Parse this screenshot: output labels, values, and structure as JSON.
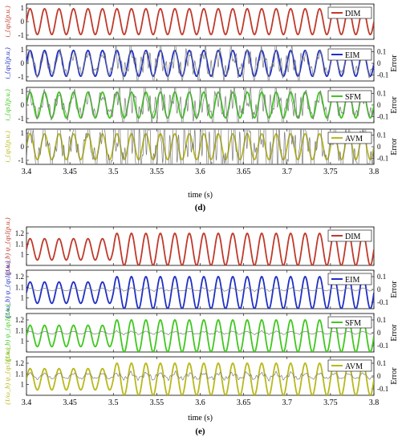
{
  "chart_data": [
    {
      "type": "line",
      "panel_label": "(d)",
      "xlabel": "time (s)",
      "xlim": [
        3.4,
        3.8
      ],
      "x_ticks": [
        "3.4",
        "3.45",
        "3.5",
        "3.55",
        "3.6",
        "3.65",
        "3.7",
        "3.75",
        "3.8"
      ],
      "subplots": [
        {
          "ylabel": "i_{qs}(p.u.)",
          "ylim": [
            -1.3,
            1.3
          ],
          "y_ticks": [
            "-1",
            "0",
            "1"
          ],
          "right_ticks": [],
          "right_label": "",
          "series": [
            {
              "name": "DIM",
              "color": "#c0392b",
              "signal": {
                "offset": 0,
                "amplitude": 0.95,
                "frequency_hz": 60,
                "noise": 0
              }
            }
          ]
        },
        {
          "ylabel": "i_{qs}(p.u.)",
          "ylim": [
            -1.3,
            1.3
          ],
          "y_ticks": [
            "-1",
            "0",
            "1"
          ],
          "right_ticks": [
            "0.1",
            "0",
            "-0.1"
          ],
          "right_label": "Error",
          "series": [
            {
              "name": "EIM",
              "color": "#1f2fc4",
              "signal": {
                "offset": 0,
                "amplitude": 0.95,
                "frequency_hz": 60,
                "noise": 0
              }
            },
            {
              "name": "Error",
              "color": "#7a7a7a",
              "signal": {
                "offset": 0,
                "amplitude": 0.08,
                "frequency_hz": 60,
                "noise": 0.35
              }
            }
          ]
        },
        {
          "ylabel": "i_{qs}(p.u.)",
          "ylim": [
            -1.3,
            1.3
          ],
          "y_ticks": [
            "-1",
            "0",
            "1"
          ],
          "right_ticks": [
            "0.1",
            "0",
            "-0.1"
          ],
          "right_label": "Error",
          "series": [
            {
              "name": "SFM",
              "color": "#3fc81e",
              "signal": {
                "offset": 0,
                "amplitude": 0.95,
                "frequency_hz": 60,
                "noise": 0
              }
            },
            {
              "name": "Error",
              "color": "#7a7a7a",
              "signal": {
                "offset": 0,
                "amplitude": 0.08,
                "frequency_hz": 60,
                "noise": 0.45
              }
            }
          ]
        },
        {
          "ylabel": "i_{qs}(p.u.)",
          "ylim": [
            -1.3,
            1.3
          ],
          "y_ticks": [
            "-1",
            "0",
            "1"
          ],
          "right_ticks": [
            "0.1",
            "0",
            "-0.1"
          ],
          "right_label": "Error",
          "series": [
            {
              "name": "AVM",
              "color": "#b8b81a",
              "signal": {
                "offset": 0,
                "amplitude": 0.95,
                "frequency_hz": 60,
                "noise": 0
              }
            },
            {
              "name": "Error",
              "color": "#7a7a7a",
              "signal": {
                "offset": 0,
                "amplitude": 0.15,
                "frequency_hz": 60,
                "noise": 0.9
              }
            }
          ]
        }
      ]
    },
    {
      "type": "line",
      "panel_label": "(e)",
      "xlabel": "time (s)",
      "xlim": [
        3.4,
        3.8
      ],
      "x_ticks": [
        "3.4",
        "3.45",
        "3.5",
        "3.55",
        "3.6",
        "3.65",
        "3.7",
        "3.75",
        "3.8"
      ],
      "subplots": [
        {
          "ylabel": "(1/ω_b) ψ_{qs}(p.u.)",
          "ylim": [
            0.9,
            1.26
          ],
          "y_ticks": [
            "1",
            "1.1",
            "1.2"
          ],
          "right_ticks": [],
          "right_label": "",
          "series": [
            {
              "name": "DIM",
              "color": "#c0392b",
              "signal": {
                "offset": 1.05,
                "amplitude": 0.1,
                "amplitude_after_3_5": 0.15,
                "frequency_hz": 60,
                "noise": 0
              }
            }
          ]
        },
        {
          "ylabel": "(1/ω_b) ψ_{qs}(p.u.)",
          "ylim": [
            0.9,
            1.26
          ],
          "y_ticks": [
            "1",
            "1.1",
            "1.2"
          ],
          "right_ticks": [
            "0.1",
            "0",
            "-0.1"
          ],
          "right_label": "Error",
          "series": [
            {
              "name": "EIM",
              "color": "#1f2fc4",
              "signal": {
                "offset": 1.05,
                "amplitude": 0.1,
                "amplitude_after_3_5": 0.15,
                "frequency_hz": 60,
                "noise": 0
              }
            },
            {
              "name": "Error",
              "color": "#7a7a7a",
              "signal": {
                "offset": 0,
                "amplitude": 0.01,
                "frequency_hz": 60,
                "noise": 0.02
              }
            }
          ]
        },
        {
          "ylabel": "(1/ω_b) ψ_{qs}(p.u.)",
          "ylim": [
            0.9,
            1.26
          ],
          "y_ticks": [
            "1",
            "1.1",
            "1.2"
          ],
          "right_ticks": [
            "0.1",
            "0",
            "-0.1"
          ],
          "right_label": "Error",
          "series": [
            {
              "name": "SFM",
              "color": "#3fc81e",
              "signal": {
                "offset": 1.05,
                "amplitude": 0.1,
                "amplitude_after_3_5": 0.15,
                "frequency_hz": 60,
                "noise": 0
              }
            },
            {
              "name": "Error",
              "color": "#7a7a7a",
              "signal": {
                "offset": 0,
                "amplitude": 0.01,
                "frequency_hz": 60,
                "noise": 0.02
              }
            }
          ]
        },
        {
          "ylabel": "(1/ω_b) ψ_{qs}(p.u.)",
          "ylim": [
            0.9,
            1.26
          ],
          "y_ticks": [
            "1",
            "1.1",
            "1.2"
          ],
          "right_ticks": [
            "0.1",
            "0",
            "-0.1"
          ],
          "right_label": "Error",
          "series": [
            {
              "name": "AVM",
              "color": "#b8b81a",
              "signal": {
                "offset": 1.05,
                "amplitude": 0.1,
                "amplitude_after_3_5": 0.15,
                "frequency_hz": 60,
                "noise": 0
              }
            },
            {
              "name": "Error",
              "color": "#7a7a7a",
              "signal": {
                "offset": 0,
                "amplitude": 0.02,
                "frequency_hz": 60,
                "noise": 0.06
              }
            }
          ]
        }
      ]
    }
  ]
}
